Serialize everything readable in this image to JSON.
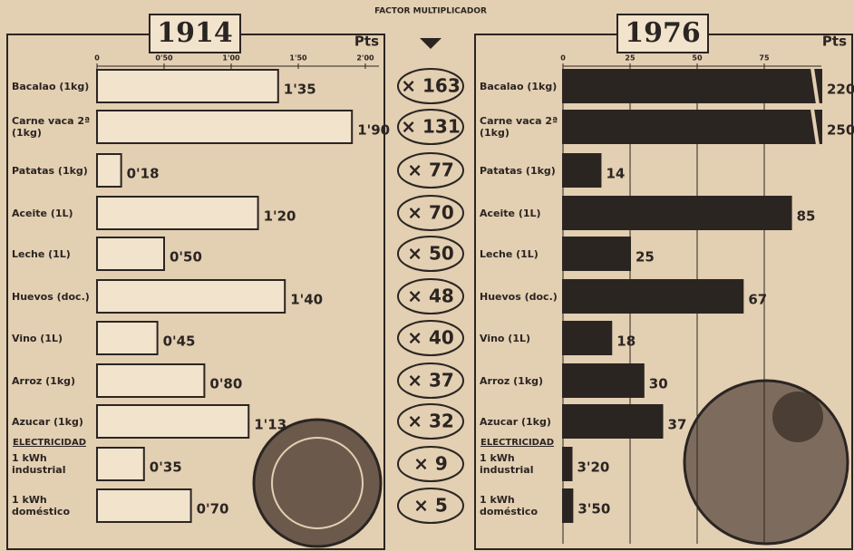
{
  "chart_data": [
    {
      "type": "bar",
      "orientation": "horizontal",
      "title": "1914",
      "unit": "Pts",
      "annotation": "ELECTRICIDAD",
      "categories": [
        "Bacalao (1kg)",
        "Carne vaca 2ª (1kg)",
        "Patatas (1kg)",
        "Aceite (1L)",
        "Leche (1L)",
        "Huevos (doc.)",
        "Vino (1L)",
        "Arroz (1kg)",
        "Azucar (1kg)",
        "1 kWh industrial",
        "1 kWh doméstico"
      ],
      "values": [
        1.35,
        1.9,
        0.18,
        1.2,
        0.5,
        1.4,
        0.45,
        0.8,
        1.13,
        0.35,
        0.7
      ],
      "value_labels": [
        "1'35",
        "1'90",
        "0'18",
        "1'20",
        "0'50",
        "1'40",
        "0'45",
        "0'80",
        "1'13",
        "0'35",
        "0'70"
      ],
      "xlim": [
        0,
        2.0
      ],
      "xticks": [
        0,
        {
          "value": 0.5,
          "label": "0'50"
        },
        {
          "value": 1.0,
          "label": "1'00"
        },
        {
          "value": 1.5,
          "label": "1'50"
        },
        {
          "value": 2.0,
          "label": "2'00"
        }
      ],
      "color": "#f1e3cc",
      "grid": false
    },
    {
      "type": "bar",
      "orientation": "horizontal",
      "title": "1976",
      "unit": "Pts",
      "annotation": "ELECTRICIDAD",
      "categories": [
        "Bacalao (1kg)",
        "Carne vaca 2ª (1kg)",
        "Patatas (1kg)",
        "Aceite (1L)",
        "Leche (1L)",
        "Huevos (doc.)",
        "Vino (1L)",
        "Arroz (1kg)",
        "Azucar (1kg)",
        "1 kWh industrial",
        "1 kWh doméstico"
      ],
      "values": [
        220,
        250,
        14,
        85,
        25,
        67,
        18,
        30,
        37,
        3.2,
        3.5
      ],
      "value_labels": [
        "220",
        "250",
        "14",
        "85",
        "25",
        "67",
        "18",
        "30",
        "37",
        "3'20",
        "3'50"
      ],
      "xlim": [
        0,
        100
      ],
      "xticks": [
        0,
        25,
        50,
        75
      ],
      "color": "#2b2522",
      "grid": true
    }
  ],
  "factor": {
    "title": "FACTOR MULTIPLICADOR",
    "labels": [
      "× 163",
      "× 131",
      "× 77",
      "× 70",
      "× 50",
      "× 48",
      "× 40",
      "× 37",
      "× 32",
      "× 9",
      "× 5"
    ]
  }
}
